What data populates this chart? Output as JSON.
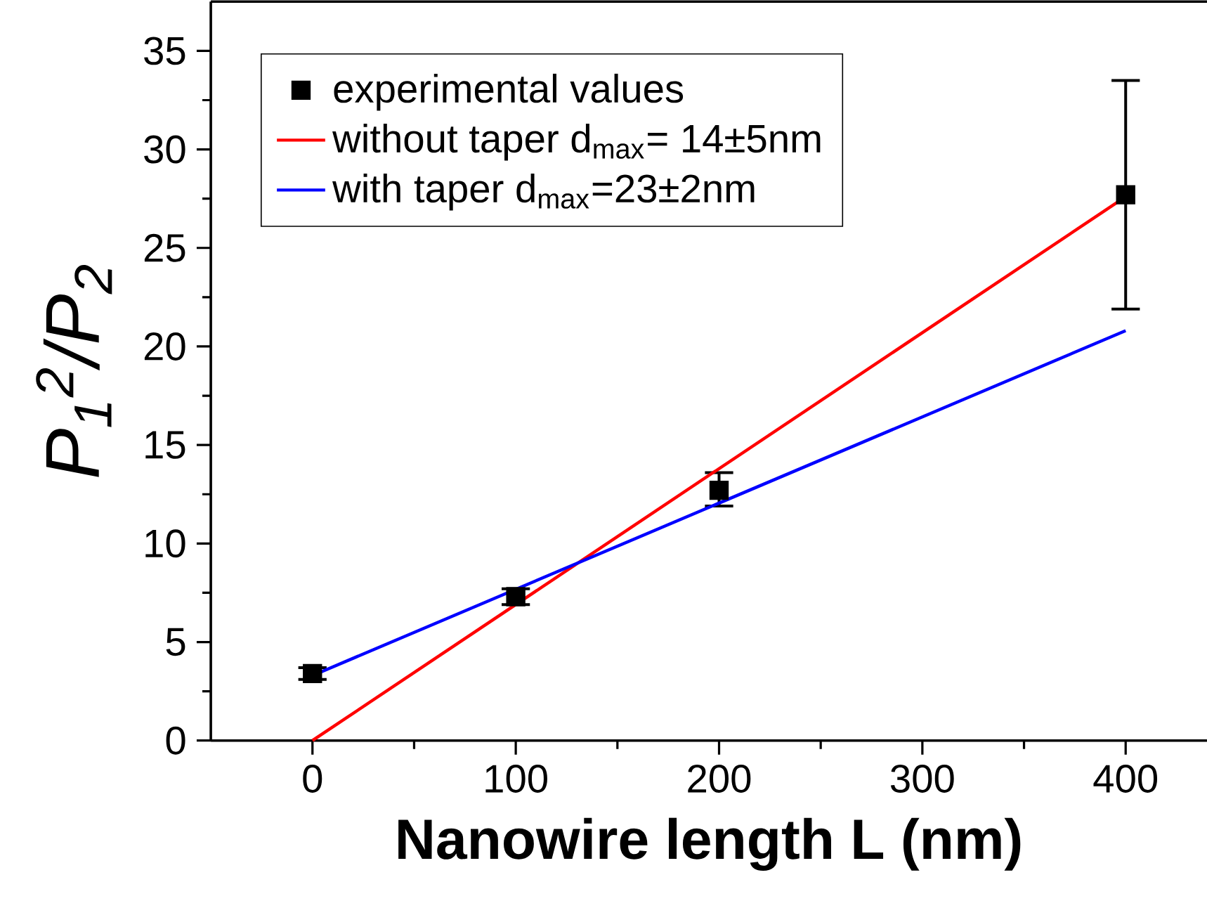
{
  "chart_data": {
    "type": "scatter",
    "xlabel": "Nanowire length L (nm)",
    "ylabel": "P$_{1}$$^{2}$/P$_{2}$",
    "xlim": [
      -50,
      440
    ],
    "ylim": [
      0,
      37.5
    ],
    "xticks": [
      0,
      100,
      200,
      300,
      400
    ],
    "yticks": [
      0,
      5,
      10,
      15,
      20,
      25,
      30,
      35
    ],
    "legend": "top left",
    "grid": false,
    "series": [
      {
        "name": "experimental values",
        "marker": "square",
        "color": "#000000",
        "x": [
          0,
          100,
          200,
          400
        ],
        "values": [
          3.4,
          7.3,
          12.7,
          27.7
        ],
        "errors": [
          0.3,
          0.4,
          [
            11.9,
            13.6
          ],
          [
            21.9,
            33.5
          ]
        ]
      },
      {
        "name": "without taper d$_{max}$= 14±5nm",
        "type": "line",
        "color": "#ff0000",
        "x": [
          0,
          400
        ],
        "values": [
          0,
          27.6
        ]
      },
      {
        "name": "with taper  d$_{max}$=23±2nm",
        "type": "line",
        "color": "#0000ff",
        "x": [
          0,
          400
        ],
        "values": [
          3.3,
          20.8
        ]
      }
    ]
  }
}
